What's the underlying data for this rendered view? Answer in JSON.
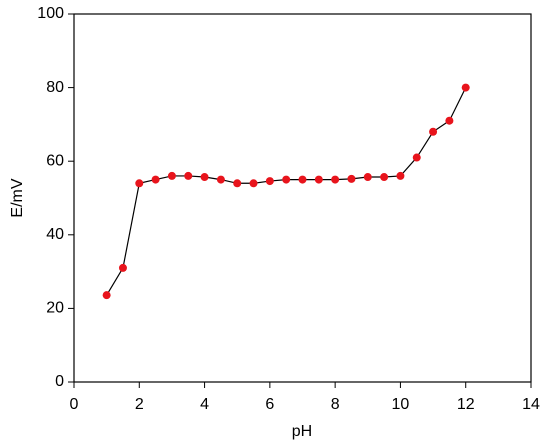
{
  "chart_data": {
    "type": "line",
    "x_label": "pH",
    "y_label": "E/mV",
    "x": [
      1,
      1.5,
      2,
      2.5,
      3,
      3.5,
      4,
      4.5,
      5,
      5.5,
      6,
      6.5,
      7,
      7.5,
      8,
      8.5,
      9,
      9.5,
      10,
      10.5,
      11,
      11.5,
      12
    ],
    "series": [
      {
        "name": "E",
        "color": "#e8141c",
        "line_color": "#000000",
        "values": [
          23.6,
          31,
          54,
          55,
          56,
          56,
          55.7,
          55,
          54,
          54,
          54.6,
          55,
          55,
          55,
          55,
          55.2,
          55.7,
          55.7,
          56,
          61,
          68,
          71,
          80
        ]
      }
    ],
    "xlim": [
      0,
      14
    ],
    "xticks": [
      0,
      2,
      4,
      6,
      8,
      10,
      12,
      14
    ],
    "ylim": [
      0,
      100
    ],
    "yticks": [
      0,
      20,
      40,
      60,
      80,
      100
    ],
    "grid": false
  }
}
